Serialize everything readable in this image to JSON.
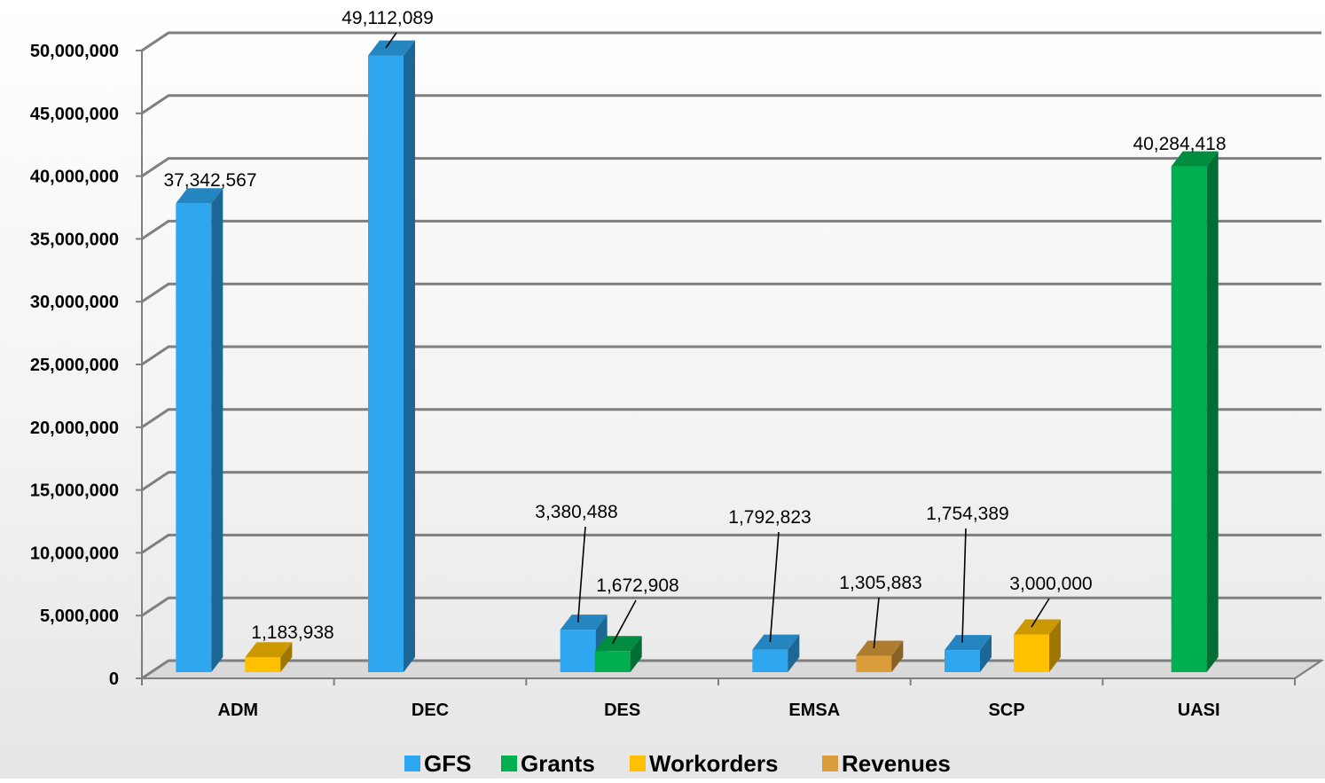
{
  "chart_data": {
    "type": "bar",
    "categories": [
      "ADM",
      "DEC",
      "DES",
      "EMSA",
      "SCP",
      "UASI"
    ],
    "series": [
      {
        "name": "GFS",
        "color": "#2EA6F0",
        "values": [
          37342567,
          49112089,
          3380488,
          1792823,
          1754389,
          null
        ]
      },
      {
        "name": "Grants",
        "color": "#00B050",
        "values": [
          null,
          null,
          1672908,
          null,
          null,
          40284418
        ]
      },
      {
        "name": "Workorders",
        "color": "#FFC000",
        "values": [
          1183938,
          null,
          null,
          null,
          3000000,
          null
        ]
      },
      {
        "name": "Revenues",
        "color": "#DB9C3C",
        "values": [
          null,
          null,
          null,
          1305883,
          null,
          null
        ]
      }
    ],
    "data_labels": [
      {
        "category": "ADM",
        "series": "GFS",
        "text": "37,342,567"
      },
      {
        "category": "ADM",
        "series": "Workorders",
        "text": "1,183,938"
      },
      {
        "category": "DEC",
        "series": "GFS",
        "text": "49,112,089"
      },
      {
        "category": "DES",
        "series": "GFS",
        "text": "3,380,488"
      },
      {
        "category": "DES",
        "series": "Grants",
        "text": "1,672,908"
      },
      {
        "category": "EMSA",
        "series": "GFS",
        "text": "1,792,823"
      },
      {
        "category": "EMSA",
        "series": "Revenues",
        "text": "1,305,883"
      },
      {
        "category": "SCP",
        "series": "GFS",
        "text": "1,754,389"
      },
      {
        "category": "SCP",
        "series": "Workorders",
        "text": "3,000,000"
      },
      {
        "category": "UASI",
        "series": "Grants",
        "text": "40,284,418"
      }
    ],
    "y_ticks": [
      "0",
      "5,000,000",
      "10,000,000",
      "15,000,000",
      "20,000,000",
      "25,000,000",
      "30,000,000",
      "35,000,000",
      "40,000,000",
      "45,000,000",
      "50,000,000"
    ],
    "ylim": [
      0,
      50000000
    ],
    "grid": true,
    "legend_position": "bottom",
    "style": "3d-clustered-column"
  }
}
